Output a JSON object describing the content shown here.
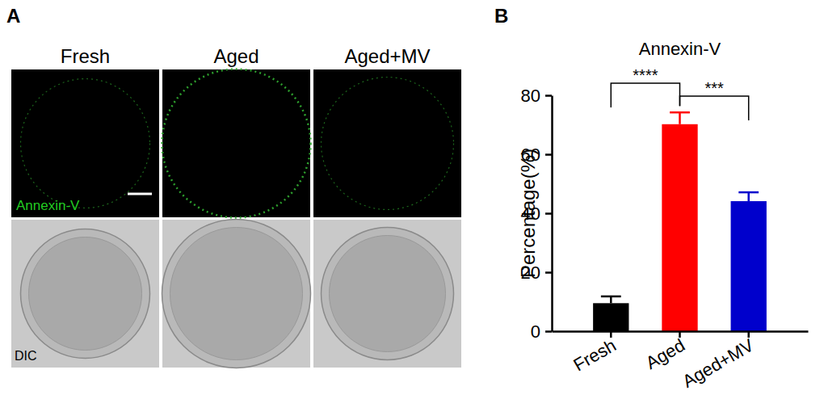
{
  "figure": {
    "panel_labels": [
      "A",
      "B"
    ]
  },
  "image_panel": {
    "columns": [
      "Fresh",
      "Aged",
      "Aged+MV"
    ],
    "rows": [
      "Annexin-V",
      "DIC"
    ]
  },
  "chart_data": {
    "type": "bar",
    "title": "Annexin-V",
    "y_label": "Percentage(%)",
    "categories": [
      "Fresh",
      "Aged",
      "Aged+MV"
    ],
    "values": [
      9.5,
      70.2,
      44.1
    ],
    "errors": [
      2.3,
      4.0,
      3.0
    ],
    "colors": [
      "#000000",
      "#ff0000",
      "#0000cc"
    ],
    "ylim": [
      0,
      80
    ],
    "yticks": [
      0,
      20,
      40,
      60,
      80
    ],
    "grid": false,
    "annotations": [
      {
        "text": "****",
        "between": [
          "Fresh",
          "Aged"
        ]
      },
      {
        "text": "***",
        "between": [
          "Aged",
          "Aged+MV"
        ]
      }
    ]
  }
}
